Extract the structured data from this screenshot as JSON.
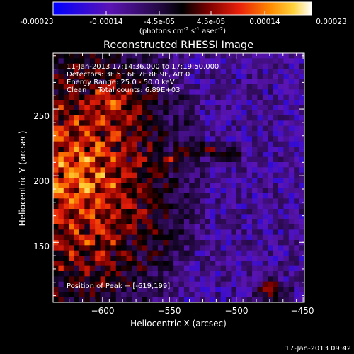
{
  "colorbar": {
    "tick_labels": [
      "-0.00023",
      "-0.00014",
      "-4.5e-05",
      "4.5e-05",
      "0.00014",
      "0.00023"
    ],
    "units_text": "(photons cm",
    "units_sup1": "-2",
    "units_mid": " s",
    "units_sup2": "-1",
    "units_end": " asec",
    "units_sup3": "-2",
    "units_close": ")"
  },
  "chart_data": {
    "type": "heatmap",
    "title": "Reconstructed RHESSI Image",
    "xlabel": "Heliocentric X (arcsec)",
    "ylabel": "Heliocentric Y (arcsec)",
    "xlim": [
      -637,
      -449
    ],
    "ylim": [
      105,
      292
    ],
    "x_ticks": [
      -600,
      -550,
      -500,
      -450
    ],
    "x_tick_labels": [
      "−600",
      "−550",
      "−500",
      "−450"
    ],
    "y_ticks": [
      150,
      200,
      250
    ],
    "y_tick_labels": [
      "150",
      "200",
      "250"
    ],
    "color_range": [
      -0.00023,
      0.00023
    ],
    "colormap": [
      "#0000ff",
      "#5a14b4",
      "#280a4a",
      "#000000",
      "#7a0000",
      "#e8200a",
      "#ff8a00",
      "#ffd23c",
      "#ffffff"
    ],
    "peak_position": [
      -619,
      199
    ],
    "annotations": [
      "11-Jan-2013 17:14:36.000 to 17:19:50.000",
      "Detectors: 3F 5F 6F 7F 8F 9F, Att 0",
      "Energy Range: 25.0 - 50.0 keV",
      "Clean     Total counts: 6.89E+03"
    ],
    "peak_label": "Position of Peak = [-619,199]"
  },
  "footer": {
    "timestamp": "17-Jan-2013 09:42"
  }
}
